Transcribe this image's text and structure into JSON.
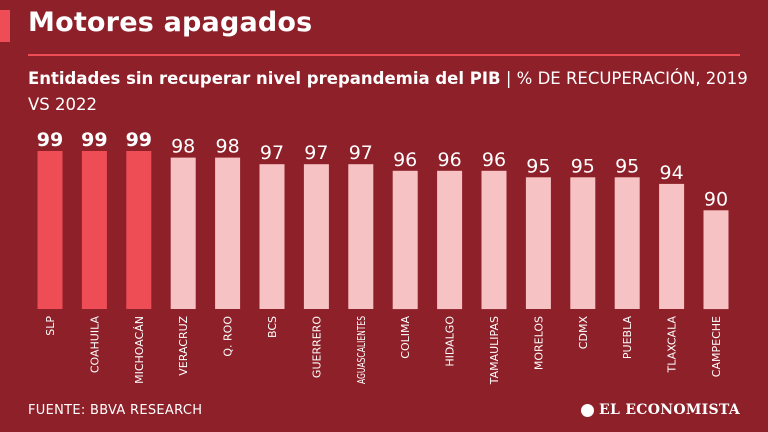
{
  "header": {
    "title": "Motores apagados",
    "subtitle_bold": "Entidades sin recuperar nivel prepandemia del PIB",
    "subtitle_sep": "|",
    "subtitle_rest": "% DE RECUPERACIÓN, 2019 VS 2022"
  },
  "footer": {
    "source": "FUENTE: BBVA RESEARCH",
    "brand": "EL ECONOMISTA"
  },
  "colors": {
    "background": "#8e2029",
    "highlight_bar": "#ee4d55",
    "regular_bar": "#f7c2c3",
    "text": "#ffffff"
  },
  "chart_data": {
    "type": "bar",
    "categories": [
      "SLP",
      "COAHUILA",
      "MICHOACÁN",
      "VERACRUZ",
      "Q. ROO",
      "BCS",
      "GUERRERO",
      "AGUASCALIENTES",
      "COLIMA",
      "HIDALGO",
      "TAMAULIPAS",
      "MORELOS",
      "CDMX",
      "PUEBLA",
      "TLAXCALA",
      "CAMPECHE"
    ],
    "values": [
      99,
      99,
      99,
      98,
      98,
      97,
      97,
      97,
      96,
      96,
      96,
      95,
      95,
      95,
      94,
      90
    ],
    "highlighted": [
      true,
      true,
      true,
      false,
      false,
      false,
      false,
      false,
      false,
      false,
      false,
      false,
      false,
      false,
      false,
      false
    ],
    "ylim": [
      75,
      99
    ],
    "title": "Entidades sin recuperar nivel prepandemia del PIB",
    "ylabel": "% DE RECUPERACIÓN, 2019 VS 2022",
    "xlabel": ""
  }
}
